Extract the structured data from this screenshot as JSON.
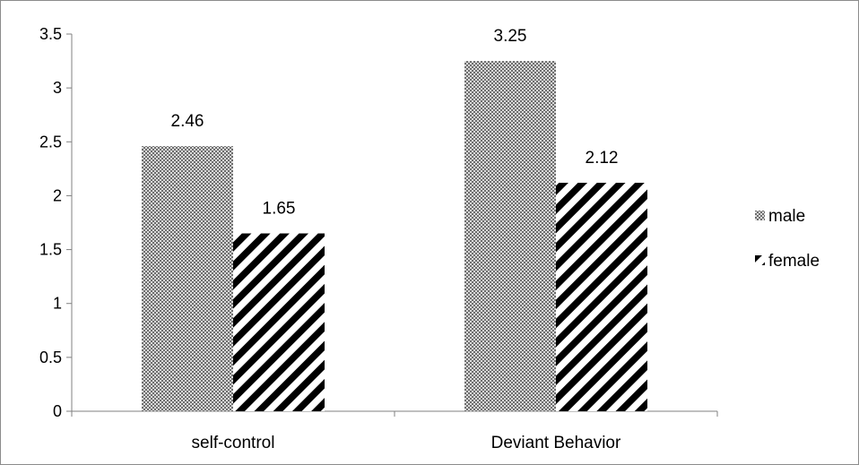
{
  "chart_data": {
    "type": "bar",
    "title": "",
    "xlabel": "",
    "ylabel": "",
    "categories": [
      "self-control",
      "Deviant Behavior"
    ],
    "series": [
      {
        "name": "male",
        "values": [
          2.46,
          3.25
        ],
        "pattern": "crosshatch"
      },
      {
        "name": "female",
        "values": [
          1.65,
          2.12
        ],
        "pattern": "diagonal-stripes"
      }
    ],
    "data_labels": [
      [
        "2.46",
        "3.25"
      ],
      [
        "1.65",
        "2.12"
      ]
    ],
    "ylim": [
      0,
      3.5
    ],
    "yticks": [
      0,
      0.5,
      1,
      1.5,
      2,
      2.5,
      3,
      3.5
    ],
    "ytick_labels": [
      "0",
      "0.5",
      "1",
      "1.5",
      "2",
      "2.5",
      "3",
      "3.5"
    ],
    "grid": false,
    "legend_position": "right"
  }
}
